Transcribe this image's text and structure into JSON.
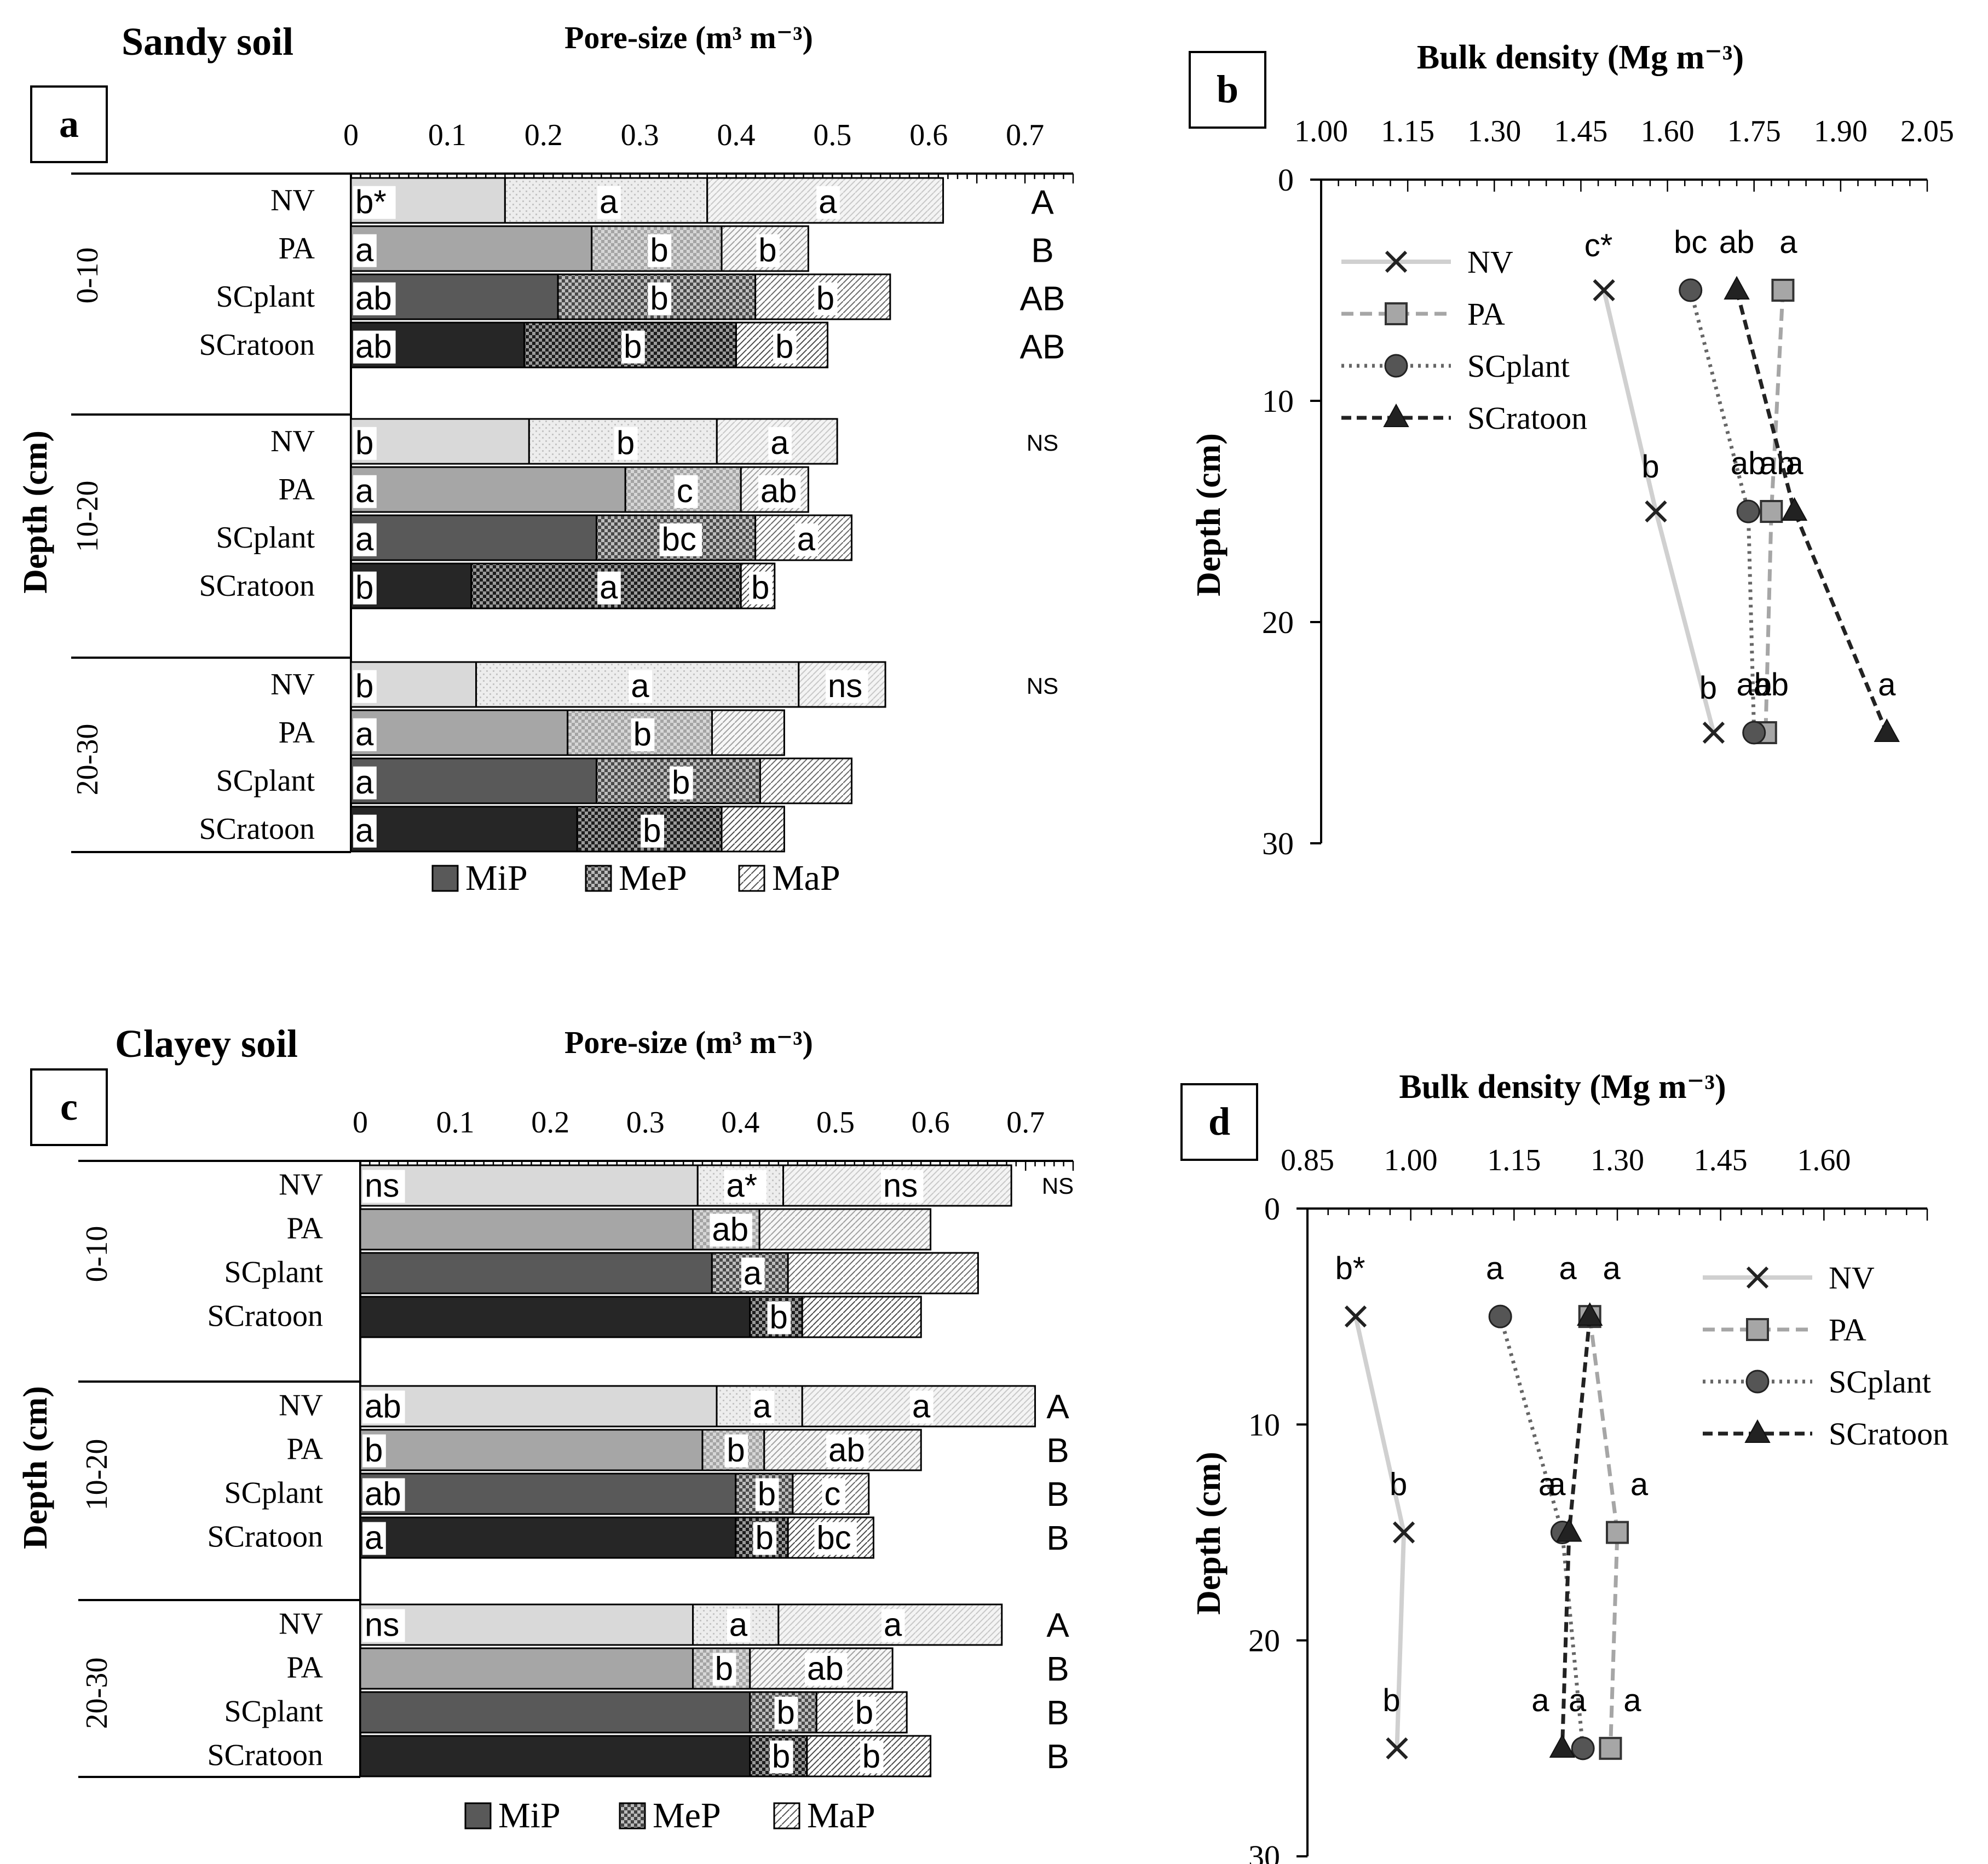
{
  "colors": {
    "NV": "#d9d9d9",
    "PA": "#a6a6a6",
    "SCplant": "#595959",
    "SCratoon": "#262626"
  },
  "chart_data": [
    {
      "type": "bar",
      "panel": "a",
      "title": "Sandy soil",
      "xlabel": "Pore-size (m³ m⁻³)",
      "ylabel": "Depth  (cm)",
      "xlim": [
        0,
        0.75
      ],
      "xticks": [
        "0",
        "0.1",
        "0.2",
        "0.3",
        "0.4",
        "0.5",
        "0.6",
        "0.7"
      ],
      "legend": [
        "MiP",
        "MeP",
        "MaP"
      ],
      "groups": [
        {
          "depth": "0-10",
          "total_letter": "",
          "rows": [
            {
              "treatment": "NV",
              "MiP": 0.16,
              "MeP": 0.21,
              "MaP": 0.245,
              "letters": [
                "b*",
                "a",
                "a"
              ],
              "total": "A"
            },
            {
              "treatment": "PA",
              "MiP": 0.25,
              "MeP": 0.135,
              "MaP": 0.09,
              "letters": [
                "a",
                "b",
                "b"
              ],
              "total": "B"
            },
            {
              "treatment": "SCplant",
              "MiP": 0.215,
              "MeP": 0.205,
              "MaP": 0.14,
              "letters": [
                "ab",
                "b",
                "b"
              ],
              "total": "AB"
            },
            {
              "treatment": "SCratoon",
              "MiP": 0.18,
              "MeP": 0.22,
              "MaP": 0.095,
              "letters": [
                "ab",
                "b",
                "b"
              ],
              "total": "AB"
            }
          ]
        },
        {
          "depth": "10-20",
          "total_letter": "NS",
          "rows": [
            {
              "treatment": "NV",
              "MiP": 0.185,
              "MeP": 0.195,
              "MaP": 0.125,
              "letters": [
                "b",
                "b",
                "a"
              ],
              "total": ""
            },
            {
              "treatment": "PA",
              "MiP": 0.285,
              "MeP": 0.12,
              "MaP": 0.07,
              "letters": [
                "a",
                "c",
                "ab"
              ],
              "total": ""
            },
            {
              "treatment": "SCplant",
              "MiP": 0.255,
              "MeP": 0.165,
              "MaP": 0.1,
              "letters": [
                "a",
                "bc",
                "a"
              ],
              "total": ""
            },
            {
              "treatment": "SCratoon",
              "MiP": 0.125,
              "MeP": 0.28,
              "MaP": 0.035,
              "letters": [
                "b",
                "a",
                "b"
              ],
              "total": ""
            }
          ]
        },
        {
          "depth": "20-30",
          "total_letter": "NS",
          "rows": [
            {
              "treatment": "NV",
              "MiP": 0.13,
              "MeP": 0.335,
              "MaP": 0.09,
              "letters": [
                "b",
                "a",
                "ns"
              ],
              "total": ""
            },
            {
              "treatment": "PA",
              "MiP": 0.225,
              "MeP": 0.15,
              "MaP": 0.075,
              "letters": [
                "a",
                "b",
                ""
              ],
              "total": ""
            },
            {
              "treatment": "SCplant",
              "MiP": 0.255,
              "MeP": 0.17,
              "MaP": 0.095,
              "letters": [
                "a",
                "b",
                ""
              ],
              "total": ""
            },
            {
              "treatment": "SCratoon",
              "MiP": 0.235,
              "MeP": 0.15,
              "MaP": 0.065,
              "letters": [
                "a",
                "b",
                ""
              ],
              "total": ""
            }
          ]
        }
      ]
    },
    {
      "type": "line",
      "panel": "b",
      "xlabel": "Bulk density (Mg m⁻³)",
      "ylabel": "Depth (cm)",
      "xlim": [
        1.0,
        2.05
      ],
      "ylim": [
        0,
        30
      ],
      "xticks": [
        "1.00",
        "1.15",
        "1.30",
        "1.45",
        "1.60",
        "1.75",
        "1.90",
        "2.05"
      ],
      "yticks": [
        "0",
        "10",
        "20",
        "30"
      ],
      "depths": [
        5,
        15,
        25
      ],
      "series": [
        {
          "name": "NV",
          "values": [
            1.49,
            1.58,
            1.68
          ],
          "letters": [
            "c*",
            "b",
            "b"
          ]
        },
        {
          "name": "PA",
          "values": [
            1.8,
            1.78,
            1.77
          ],
          "letters": [
            "a",
            "ab",
            "ab"
          ]
        },
        {
          "name": "SCplant",
          "values": [
            1.64,
            1.74,
            1.75
          ],
          "letters": [
            "bc",
            "ab",
            "ab"
          ]
        },
        {
          "name": "SCratoon",
          "values": [
            1.72,
            1.82,
            1.98
          ],
          "letters": [
            "ab",
            "a",
            "a"
          ]
        }
      ]
    },
    {
      "type": "bar",
      "panel": "c",
      "title": "Clayey soil",
      "xlabel": "Pore-size (m³ m⁻³)",
      "ylabel": "Depth  (cm)",
      "xlim": [
        0,
        0.75
      ],
      "xticks": [
        "0",
        "0.1",
        "0.2",
        "0.3",
        "0.4",
        "0.5",
        "0.6",
        "0.7"
      ],
      "legend": [
        "MiP",
        "MeP",
        "MaP"
      ],
      "groups": [
        {
          "depth": "0-10",
          "total_letter": "NS",
          "rows": [
            {
              "treatment": "NV",
              "MiP": 0.355,
              "MeP": 0.09,
              "MaP": 0.24,
              "letters": [
                "ns",
                "a*",
                "ns"
              ],
              "total": ""
            },
            {
              "treatment": "PA",
              "MiP": 0.35,
              "MeP": 0.07,
              "MaP": 0.18,
              "letters": [
                "",
                "ab",
                ""
              ],
              "total": ""
            },
            {
              "treatment": "SCplant",
              "MiP": 0.37,
              "MeP": 0.08,
              "MaP": 0.2,
              "letters": [
                "",
                "a",
                ""
              ],
              "total": ""
            },
            {
              "treatment": "SCratoon",
              "MiP": 0.41,
              "MeP": 0.055,
              "MaP": 0.125,
              "letters": [
                "",
                "b",
                ""
              ],
              "total": ""
            }
          ]
        },
        {
          "depth": "10-20",
          "total_letter": "",
          "rows": [
            {
              "treatment": "NV",
              "MiP": 0.375,
              "MeP": 0.09,
              "MaP": 0.245,
              "letters": [
                "ab",
                "a",
                "a"
              ],
              "total": "A"
            },
            {
              "treatment": "PA",
              "MiP": 0.36,
              "MeP": 0.065,
              "MaP": 0.165,
              "letters": [
                "b",
                "b",
                "ab"
              ],
              "total": "B"
            },
            {
              "treatment": "SCplant",
              "MiP": 0.395,
              "MeP": 0.06,
              "MaP": 0.08,
              "letters": [
                "ab",
                "b",
                "c"
              ],
              "total": "B"
            },
            {
              "treatment": "SCratoon",
              "MiP": 0.395,
              "MeP": 0.055,
              "MaP": 0.09,
              "letters": [
                "a",
                "b",
                "bc"
              ],
              "total": "B"
            }
          ]
        },
        {
          "depth": "20-30",
          "total_letter": "",
          "rows": [
            {
              "treatment": "NV",
              "MiP": 0.35,
              "MeP": 0.09,
              "MaP": 0.235,
              "letters": [
                "ns",
                "a",
                "a"
              ],
              "total": "A"
            },
            {
              "treatment": "PA",
              "MiP": 0.35,
              "MeP": 0.06,
              "MaP": 0.15,
              "letters": [
                "",
                "b",
                "ab"
              ],
              "total": "B"
            },
            {
              "treatment": "SCplant",
              "MiP": 0.41,
              "MeP": 0.07,
              "MaP": 0.095,
              "letters": [
                "",
                "b",
                "b"
              ],
              "total": "B"
            },
            {
              "treatment": "SCratoon",
              "MiP": 0.41,
              "MeP": 0.06,
              "MaP": 0.13,
              "letters": [
                "",
                "b",
                "b"
              ],
              "total": "B"
            }
          ]
        }
      ]
    },
    {
      "type": "line",
      "panel": "d",
      "xlabel": "Bulk density (Mg m⁻³)",
      "ylabel": "Depth (cm)",
      "xlim": [
        0.85,
        1.75
      ],
      "ylim": [
        0,
        30
      ],
      "xticks": [
        "0.85",
        "1.00",
        "1.15",
        "1.30",
        "1.45",
        "1.60"
      ],
      "yticks": [
        "0",
        "10",
        "20",
        "30"
      ],
      "depths": [
        5,
        15,
        25
      ],
      "series": [
        {
          "name": "NV",
          "values": [
            0.92,
            0.99,
            0.98
          ],
          "letters": [
            "b*",
            "b",
            "b"
          ]
        },
        {
          "name": "PA",
          "values": [
            1.26,
            1.3,
            1.29
          ],
          "letters": [
            "a",
            "a",
            "a"
          ]
        },
        {
          "name": "SCplant",
          "values": [
            1.13,
            1.22,
            1.25
          ],
          "letters": [
            "a",
            "a",
            "a"
          ]
        },
        {
          "name": "SCratoon",
          "values": [
            1.26,
            1.23,
            1.22
          ],
          "letters": [
            "a",
            "a",
            "a"
          ]
        }
      ]
    }
  ]
}
